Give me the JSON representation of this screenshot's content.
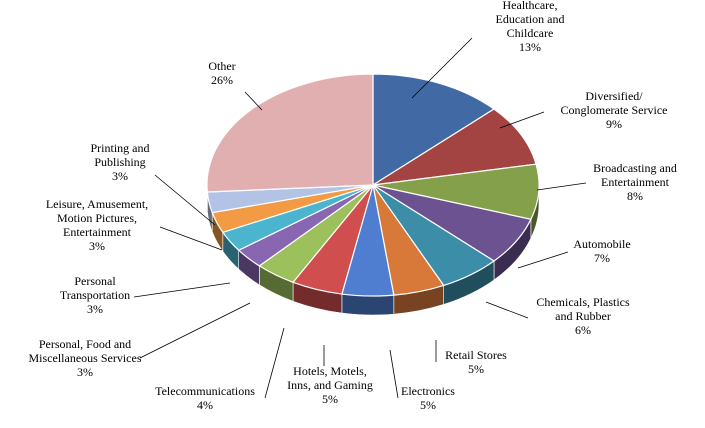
{
  "chart_data": {
    "type": "pie",
    "style": "3d",
    "title": "",
    "legend": "none",
    "slices": [
      {
        "label": [
          "Healthcare,",
          "Education and",
          "Childcare"
        ],
        "value_label": "13%",
        "value": 13,
        "color": "#4169A3"
      },
      {
        "label": [
          "Diversified/",
          "Conglomerate Service"
        ],
        "value_label": "9%",
        "value": 9,
        "color": "#A34442"
      },
      {
        "label": [
          "Broadcasting and",
          "Entertainment"
        ],
        "value_label": "8%",
        "value": 8,
        "color": "#84A04A"
      },
      {
        "label": [
          "Automobile"
        ],
        "value_label": "7%",
        "value": 7,
        "color": "#6C5290"
      },
      {
        "label": [
          "Chemicals, Plastics",
          "and Rubber"
        ],
        "value_label": "6%",
        "value": 6,
        "color": "#3C8EA8"
      },
      {
        "label": [
          "Retail Stores"
        ],
        "value_label": "5%",
        "value": 5,
        "color": "#D8793A"
      },
      {
        "label": [
          "Electronics"
        ],
        "value_label": "5%",
        "value": 5,
        "color": "#4F7ED0"
      },
      {
        "label": [
          "Hotels, Motels,",
          "Inns, and Gaming"
        ],
        "value_label": "5%",
        "value": 5,
        "color": "#D14E4E"
      },
      {
        "label": [
          "Telecommunications"
        ],
        "value_label": "4%",
        "value": 4,
        "color": "#9CC05C"
      },
      {
        "label": [
          "Personal, Food and",
          "Miscellaneous Services"
        ],
        "value_label": "3%",
        "value": 3,
        "color": "#8866B2"
      },
      {
        "label": [
          "Personal",
          "Transportation"
        ],
        "value_label": "3%",
        "value": 3,
        "color": "#4BB4CF"
      },
      {
        "label": [
          "Leisure, Amusement,",
          "Motion Pictures,",
          "Entertainment"
        ],
        "value_label": "3%",
        "value": 3,
        "color": "#F39A44"
      },
      {
        "label": [
          "Printing and",
          "Publishing"
        ],
        "value_label": "3%",
        "value": 3,
        "color": "#B3C3E6"
      },
      {
        "label": [
          "Other"
        ],
        "value_label": "26%",
        "value": 26,
        "color": "#E2AFB0"
      }
    ]
  }
}
